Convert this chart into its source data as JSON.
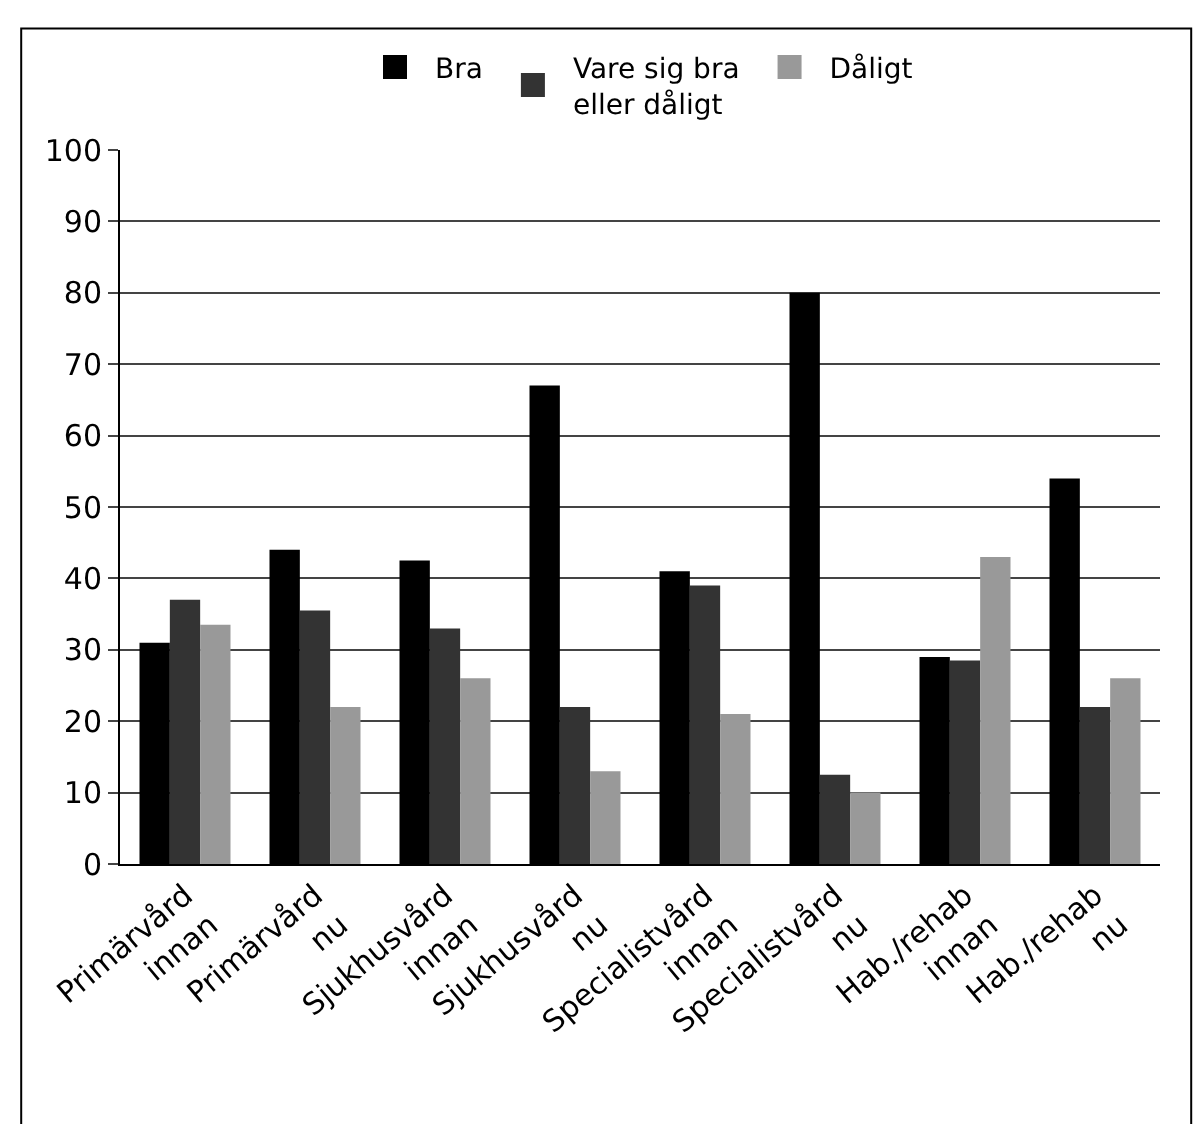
{
  "chart_data": {
    "type": "bar",
    "categories": [
      "Primärvård\ninnan",
      "Primärvård\nnu",
      "Sjukhusvård\ninnan",
      "Sjukhusvård\nnu",
      "Specialistvård\ninnan",
      "Specialistvård\nnu",
      "Hab./rehab\ninnan",
      "Hab./rehab\nnu"
    ],
    "series": [
      {
        "name": "Bra",
        "color": "#000000",
        "values": [
          31,
          44,
          42.5,
          67,
          41,
          80,
          29,
          54
        ]
      },
      {
        "name": "Vare sig bra\neller dåligt",
        "color": "#333333",
        "values": [
          37,
          35.5,
          33,
          22,
          39,
          12.5,
          28.5,
          22
        ]
      },
      {
        "name": "Dåligt",
        "color": "#999999",
        "values": [
          33.5,
          22,
          26,
          13,
          21,
          10,
          43,
          26
        ]
      }
    ],
    "ylim": [
      0,
      100
    ],
    "yticks": [
      0,
      10,
      20,
      30,
      40,
      50,
      60,
      70,
      80,
      90,
      100
    ],
    "grid": "y",
    "legend": "top"
  }
}
